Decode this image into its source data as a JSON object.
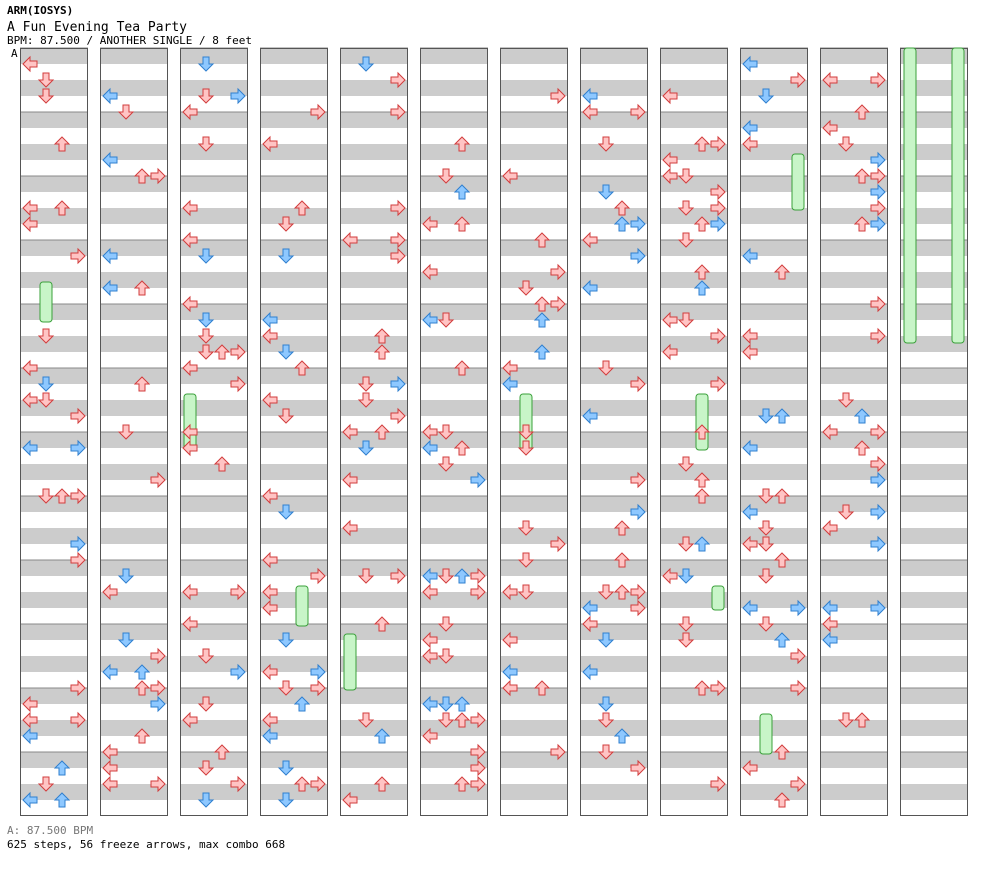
{
  "header": {
    "artist": "ARM(IOSYS)",
    "title": "A Fun Evening Tea Party",
    "info": "BPM: 87.500 / ANOTHER SINGLE / 8 feet",
    "section_marker": "A"
  },
  "footer": {
    "bpm_label": "A: 87.500 BPM",
    "stats": "625 steps, 56 freeze arrows, max combo 668"
  },
  "colors": {
    "band_gray": "#cccccc",
    "column_border": "#555555",
    "arrow_red_fill": "#ffc4c4",
    "arrow_red_stroke": "#d23c3c",
    "arrow_blue_fill": "#8ec8ff",
    "arrow_blue_stroke": "#2f7fcf",
    "freeze_fill": "#c8f5c8",
    "freeze_stroke": "#3aa03a"
  },
  "chart_data": {
    "type": "stepchart",
    "panels": 12,
    "measures_per_panel": 12,
    "lanes": [
      "left",
      "down",
      "up",
      "right"
    ],
    "arrow_directions": {
      "left": "←",
      "down": "↓",
      "up": "↑",
      "right": "→"
    }
  }
}
